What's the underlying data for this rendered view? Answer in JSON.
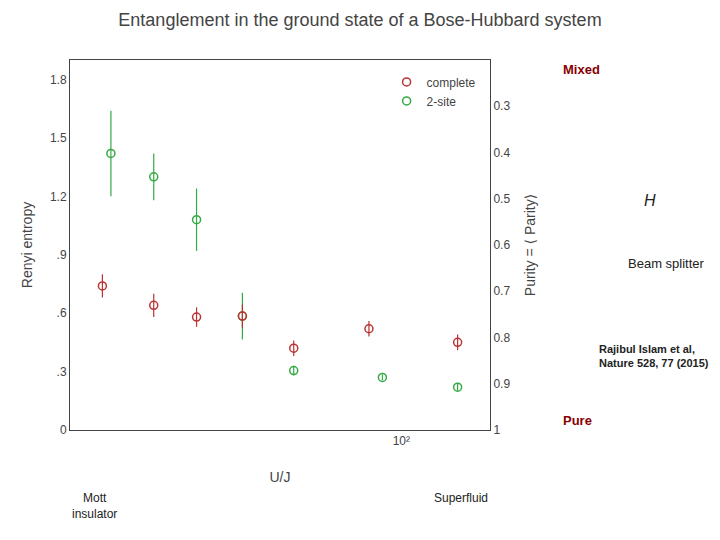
{
  "chart_data": {
    "type": "scatter",
    "title": "Entanglement in the ground state of a Bose-Hubbard system",
    "x_label": "U/J",
    "y_label": "Renyi entropy",
    "y2_label": "Purity = ⟨ Parity⟩",
    "log": "x",
    "grid": false,
    "legend": "upper right",
    "xlim": [
      120000,
      15
    ],
    "xticks": [
      {
        "value": 100,
        "label": "10²"
      }
    ],
    "ylim": [
      0,
      1.9
    ],
    "yticks": [
      0,
      {
        "value": 0.3,
        "label": ".3"
      },
      {
        "value": 0.6,
        "label": ".6"
      },
      {
        "value": 0.9,
        "label": ".9"
      },
      1.2,
      1.5,
      1.8
    ],
    "y2lim": [
      1.0,
      0.2
    ],
    "y2ticks": [
      0.3,
      0.4,
      0.5,
      0.6,
      0.7,
      0.8,
      0.9,
      1
    ],
    "series": [
      {
        "name": "2-site",
        "color": "#33aa44",
        "marker": "circle-open",
        "x": [
          30,
          150,
          1000,
          3000,
          8000,
          20000,
          50000
        ],
        "values": [
          0.22,
          0.27,
          0.305,
          0.585,
          1.08,
          1.3,
          1.42
        ],
        "error": [
          0.018,
          0.015,
          0.025,
          0.12,
          0.16,
          0.12,
          0.22
        ]
      },
      {
        "name": "complete",
        "color": "#bb3333",
        "marker": "circle-open",
        "x": [
          30,
          200,
          1000,
          3000,
          8000,
          20000,
          60000
        ],
        "values": [
          0.45,
          0.52,
          0.42,
          0.585,
          0.58,
          0.64,
          0.74
        ],
        "error": [
          0.04,
          0.04,
          0.04,
          0.06,
          0.05,
          0.06,
          0.06
        ]
      }
    ],
    "annotations": [
      {
        "text": "Mixed"
      },
      {
        "text": "Pure"
      },
      {
        "text": "H"
      },
      {
        "text": "Beam splitter"
      },
      {
        "text": "Rajibul Islam et al,\nNature 528, 77 (2015)"
      },
      {
        "text": "Mott\ninsulator"
      },
      {
        "text": "Superfluid"
      }
    ]
  }
}
